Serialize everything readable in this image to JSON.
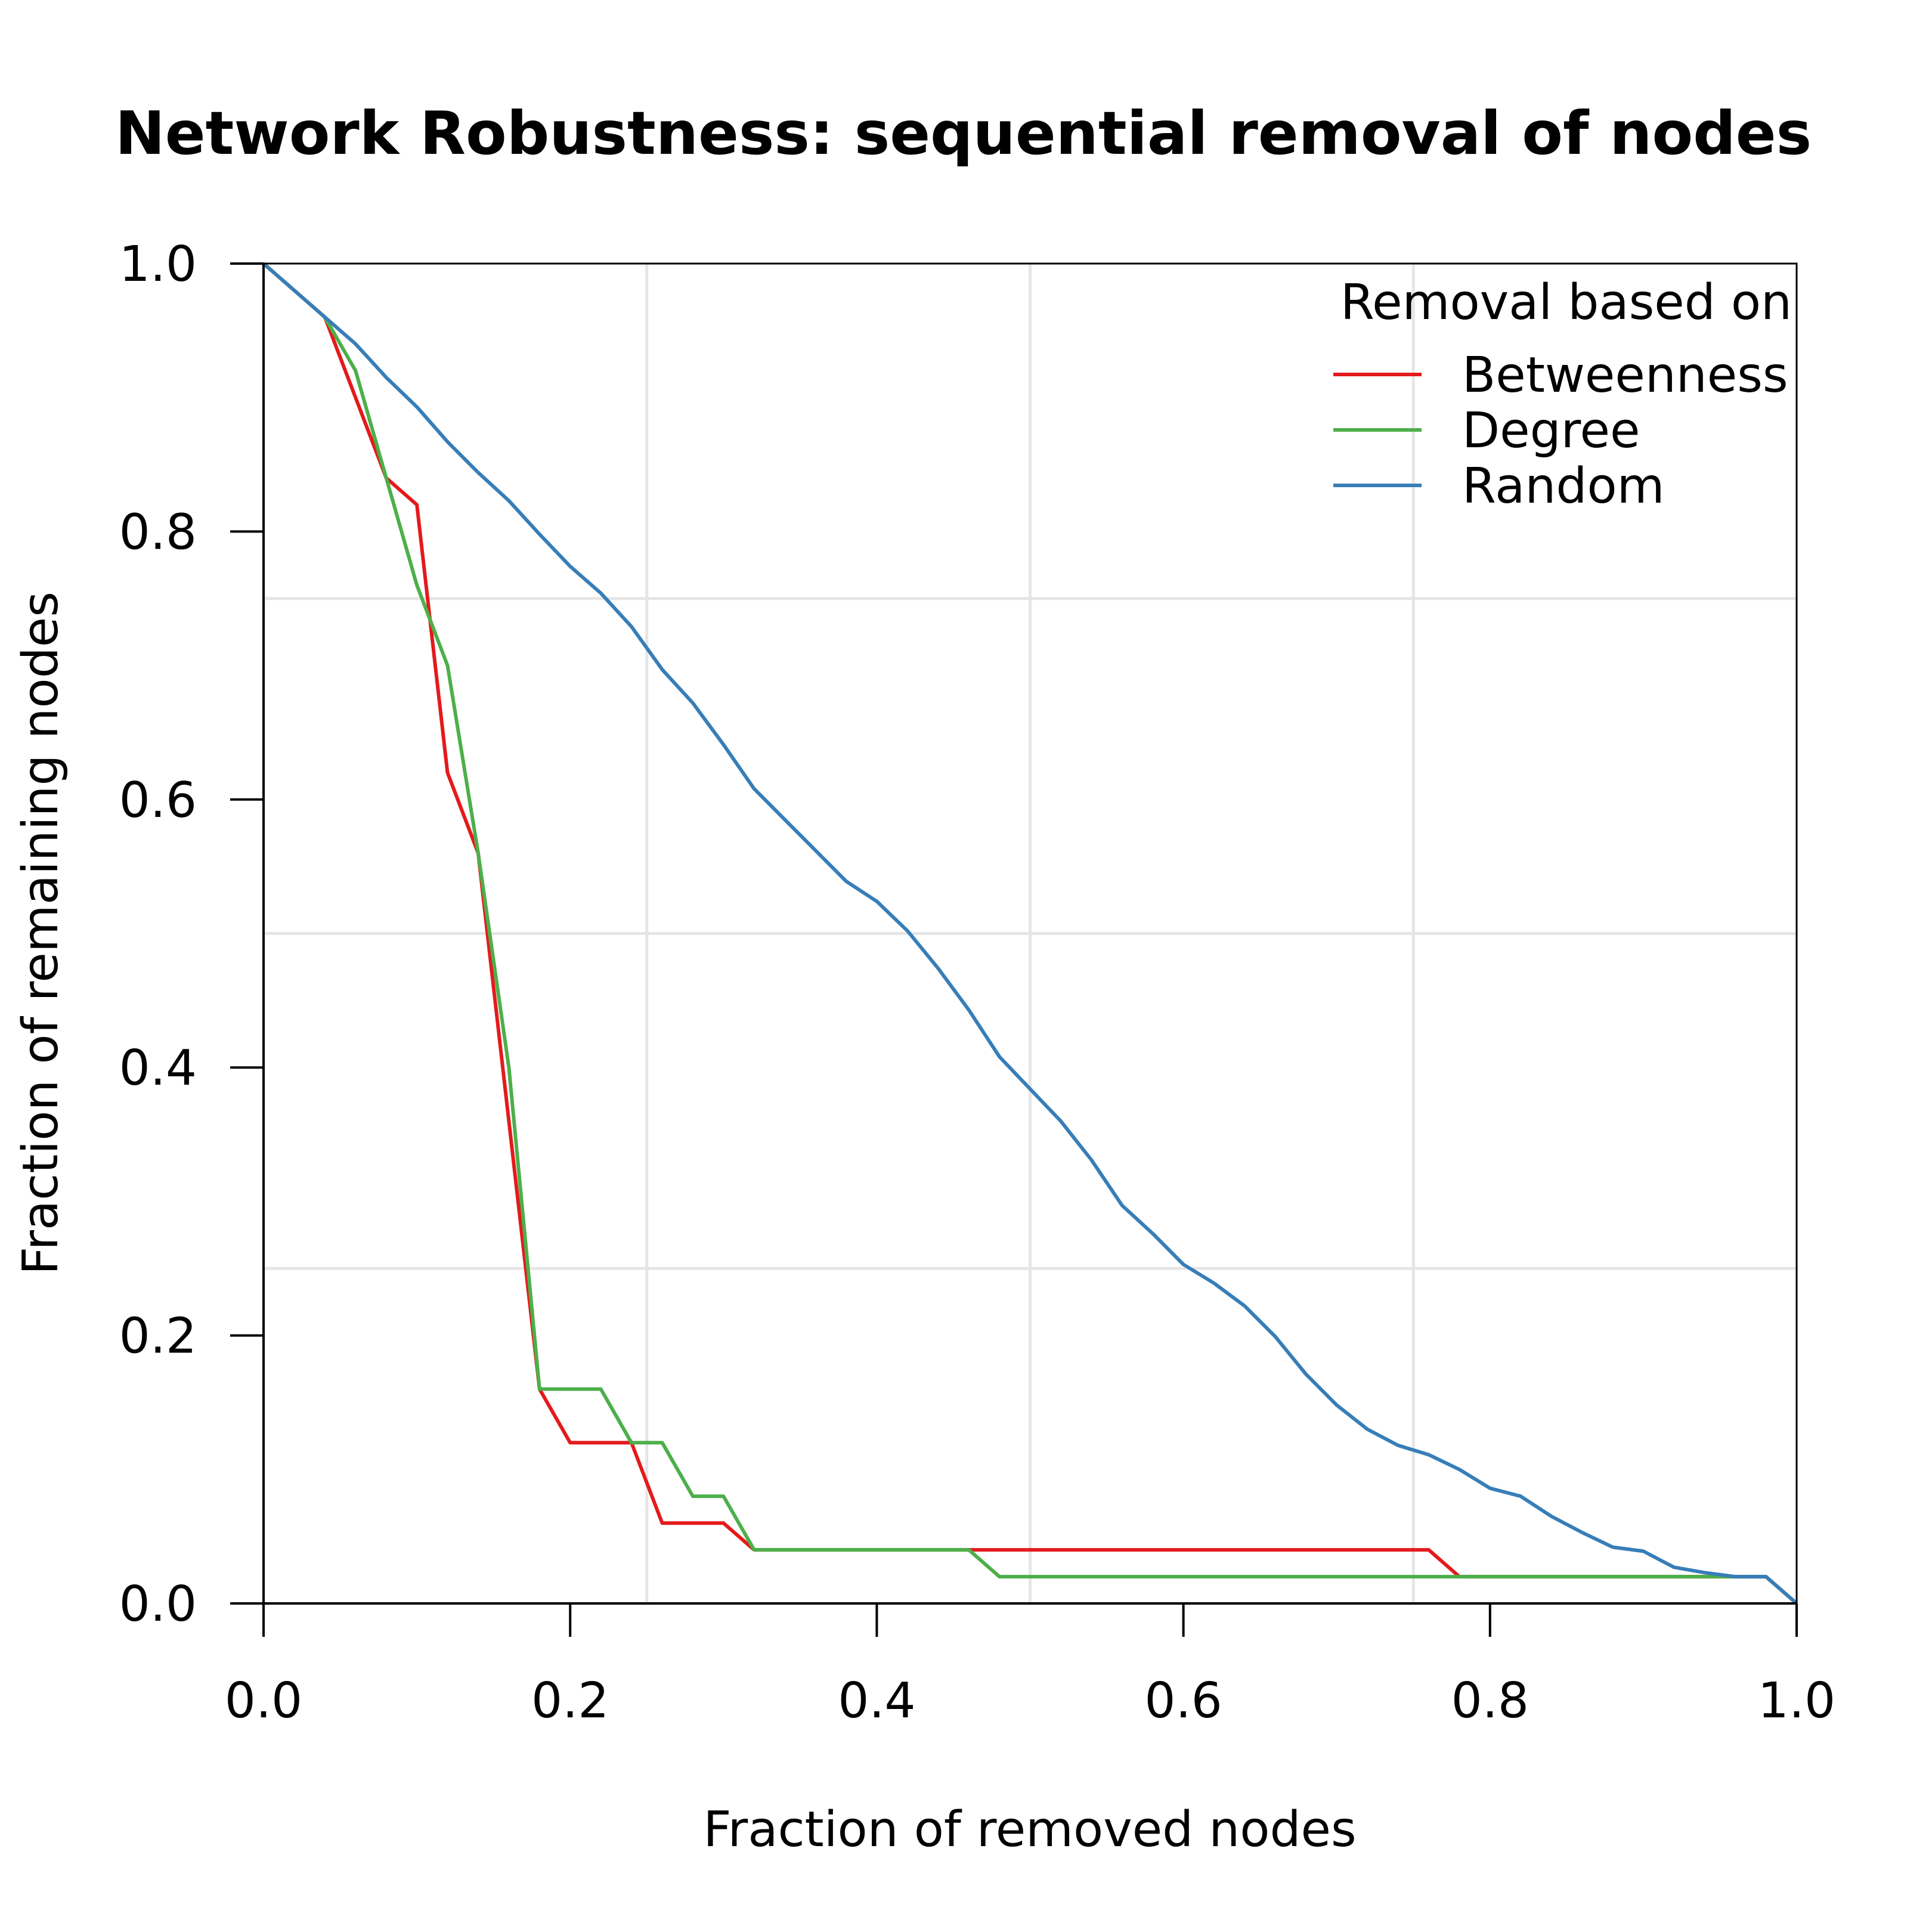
{
  "chart_data": {
    "type": "line",
    "title": "Network Robustness: sequential removal of nodes",
    "xlabel": "Fraction of removed nodes",
    "ylabel": "Fraction of remaining nodes",
    "xlim": [
      0,
      1
    ],
    "ylim": [
      0,
      1
    ],
    "xticks": [
      "0.0",
      "0.2",
      "0.4",
      "0.6",
      "0.8",
      "1.0"
    ],
    "yticks": [
      "0.0",
      "0.2",
      "0.4",
      "0.6",
      "0.8",
      "1.0"
    ],
    "grid": true,
    "legend": {
      "title": "Removal based on",
      "placement": "top-right"
    },
    "series": [
      {
        "name": "Betweenness",
        "color": "#e41a1c",
        "x": [
          0,
          0.04,
          0.08,
          0.1,
          0.12,
          0.14,
          0.16,
          0.18,
          0.2,
          0.22,
          0.24,
          0.26,
          0.28,
          0.3,
          0.32,
          0.34,
          0.76,
          0.78,
          0.98,
          1.0
        ],
        "y": [
          1.0,
          0.96,
          0.84,
          0.82,
          0.62,
          0.56,
          0.36,
          0.16,
          0.12,
          0.12,
          0.12,
          0.06,
          0.06,
          0.06,
          0.04,
          0.04,
          0.04,
          0.02,
          0.02,
          0.0
        ]
      },
      {
        "name": "Degree",
        "color": "#4daf4a",
        "x": [
          0,
          0.04,
          0.06,
          0.08,
          0.1,
          0.12,
          0.14,
          0.16,
          0.18,
          0.2,
          0.22,
          0.24,
          0.26,
          0.28,
          0.3,
          0.32,
          0.46,
          0.48,
          0.98,
          1.0
        ],
        "y": [
          1.0,
          0.96,
          0.92,
          0.84,
          0.76,
          0.7,
          0.56,
          0.4,
          0.16,
          0.16,
          0.16,
          0.12,
          0.12,
          0.08,
          0.08,
          0.04,
          0.04,
          0.02,
          0.02,
          0.0
        ]
      },
      {
        "name": "Random",
        "color": "#377eb8",
        "x": [
          0,
          0.02,
          0.04,
          0.06,
          0.08,
          0.1,
          0.12,
          0.14,
          0.16,
          0.18,
          0.2,
          0.22,
          0.24,
          0.26,
          0.28,
          0.3,
          0.32,
          0.34,
          0.36,
          0.38,
          0.4,
          0.42,
          0.44,
          0.46,
          0.48,
          0.5,
          0.52,
          0.54,
          0.56,
          0.58,
          0.6,
          0.62,
          0.64,
          0.66,
          0.68,
          0.7,
          0.72,
          0.74,
          0.76,
          0.78,
          0.8,
          0.82,
          0.84,
          0.86,
          0.88,
          0.9,
          0.92,
          0.94,
          0.96,
          0.98,
          1.0
        ],
        "y": [
          1.0,
          0.98,
          0.96,
          0.94,
          0.915,
          0.893,
          0.867,
          0.844,
          0.823,
          0.798,
          0.774,
          0.754,
          0.729,
          0.697,
          0.672,
          0.641,
          0.608,
          0.585,
          0.562,
          0.539,
          0.524,
          0.502,
          0.474,
          0.443,
          0.408,
          0.384,
          0.36,
          0.331,
          0.297,
          0.276,
          0.253,
          0.239,
          0.222,
          0.199,
          0.171,
          0.148,
          0.13,
          0.118,
          0.111,
          0.1,
          0.086,
          0.08,
          0.065,
          0.053,
          0.042,
          0.039,
          0.027,
          0.023,
          0.02,
          0.02,
          0.0
        ]
      }
    ]
  }
}
